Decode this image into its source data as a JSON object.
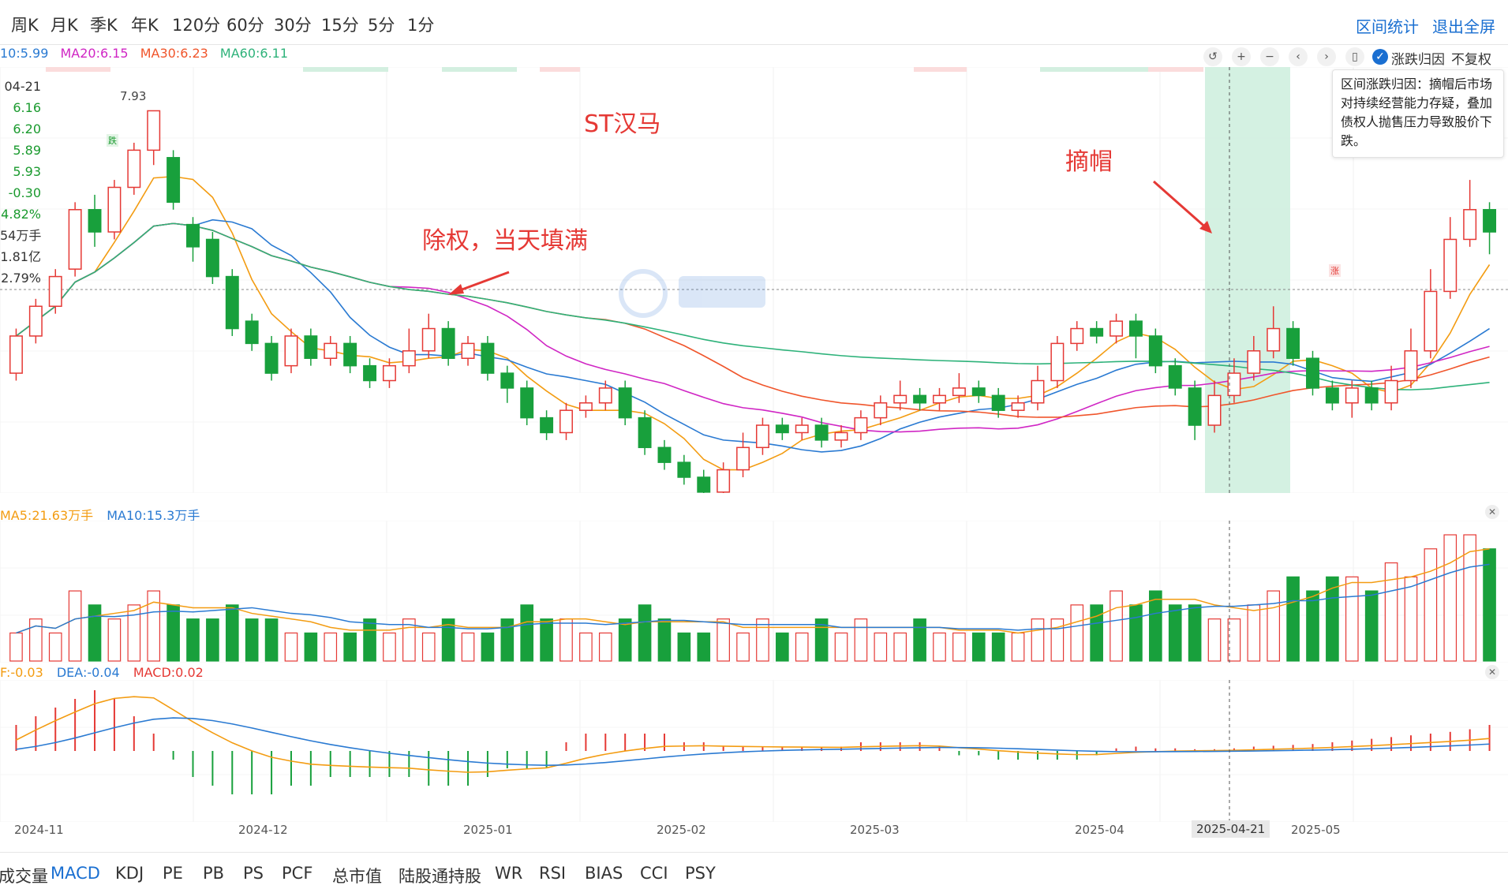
{
  "periods": [
    "周K",
    "月K",
    "季K",
    "年K",
    "120分",
    "60分",
    "30分",
    "15分",
    "5分",
    "1分"
  ],
  "right_links": {
    "range_stats": "区间统计",
    "exit_fullscreen": "退出全屏"
  },
  "ma_legend": [
    {
      "label": "10:5.99",
      "color": "#2a7ad2"
    },
    {
      "label": "MA20:6.15",
      "color": "#d026c4"
    },
    {
      "label": "MA30:6.23",
      "color": "#f0552b"
    },
    {
      "label": "MA60:6.11",
      "color": "#2eb27a"
    }
  ],
  "toolbar": {
    "zhangdie_label": "涨跌归因",
    "fuquan_label": "不复权"
  },
  "info_panel": [
    {
      "text": "04-21",
      "color": "#333333"
    },
    {
      "text": "6.16",
      "color": "#1a9a2e"
    },
    {
      "text": "6.20",
      "color": "#1a9a2e"
    },
    {
      "text": "5.89",
      "color": "#1a9a2e"
    },
    {
      "text": "5.93",
      "color": "#1a9a2e"
    },
    {
      "text": "-0.30",
      "color": "#1a9a2e"
    },
    {
      "text": "4.82%",
      "color": "#1a9a2e"
    },
    {
      "text": "54万手",
      "color": "#333333"
    },
    {
      "text": "1.81亿",
      "color": "#333333"
    },
    {
      "text": "2.79%",
      "color": "#333333"
    }
  ],
  "tooltip": {
    "text": "区间涨跌归因：摘帽后市场对持续经营能力存疑，叠加债权人抛售压力导致股价下跌。"
  },
  "annotations": {
    "title": "ST汉马",
    "exright": "除权，当天填满",
    "remove_st": "摘帽"
  },
  "marks": {
    "max_price": "7.93",
    "down_badge": "跌",
    "up_badge": "涨"
  },
  "volume_legend": [
    {
      "label": "MA5:21.63万手",
      "color": "#f39c12"
    },
    {
      "label": "MA10:15.3万手",
      "color": "#2a7ad2"
    }
  ],
  "macd_legend": [
    {
      "label": "F:-0.03",
      "color": "#f39c12"
    },
    {
      "label": "DEA:-0.04",
      "color": "#2a7ad2"
    },
    {
      "label": "MACD:0.02",
      "color": "#e53935"
    }
  ],
  "x_labels": [
    "2024-11",
    "2024-12",
    "2025-01",
    "2025-02",
    "2025-03",
    "2025-04",
    "2025-04-21",
    "2025-05"
  ],
  "indicator_tabs": [
    "成交量",
    "MACD",
    "KDJ",
    "PE",
    "PB",
    "PS",
    "PCF",
    "总市值",
    "陆股通持股",
    "WR",
    "RSI",
    "BIAS",
    "CCI",
    "PSY"
  ],
  "active_tab": "MACD",
  "colors": {
    "up": "#e53935",
    "down": "#18a03c",
    "ma5": "#f39c12",
    "ma10": "#2a7ad2",
    "ma20": "#d026c4",
    "ma30": "#f0552b",
    "ma60": "#2eb27a",
    "highlight": "#cdeedd"
  },
  "chart_data": {
    "type": "candlestick",
    "title": "ST汉马",
    "x_ticks": [
      "2024-11",
      "2024-12",
      "2025-01",
      "2025-02",
      "2025-03",
      "2025-04",
      "2025-04-21",
      "2025-05"
    ],
    "price_range": [
      3.0,
      8.2
    ],
    "max_marked_price": 7.93,
    "highlight_range": [
      "2025-04-11",
      "2025-05-06"
    ],
    "crosshair_date": "2025-04-21",
    "candles": [
      [
        4.4,
        4.9,
        5.0,
        4.3
      ],
      [
        4.9,
        5.3,
        5.4,
        4.8
      ],
      [
        5.3,
        5.7,
        5.8,
        5.2
      ],
      [
        5.8,
        6.6,
        6.7,
        5.7
      ],
      [
        6.6,
        6.3,
        6.8,
        6.1
      ],
      [
        6.3,
        6.9,
        7.0,
        6.2
      ],
      [
        6.9,
        7.4,
        7.5,
        6.8
      ],
      [
        7.4,
        7.93,
        7.93,
        7.2
      ],
      [
        7.3,
        6.7,
        7.4,
        6.6
      ],
      [
        6.4,
        6.1,
        6.5,
        5.9
      ],
      [
        6.2,
        5.7,
        6.3,
        5.6
      ],
      [
        5.7,
        5.0,
        5.8,
        4.9
      ],
      [
        5.1,
        4.8,
        5.2,
        4.7
      ],
      [
        4.8,
        4.4,
        4.9,
        4.3
      ],
      [
        4.5,
        4.9,
        5.0,
        4.4
      ],
      [
        4.9,
        4.6,
        5.0,
        4.5
      ],
      [
        4.6,
        4.8,
        4.9,
        4.5
      ],
      [
        4.8,
        4.5,
        4.9,
        4.4
      ],
      [
        4.5,
        4.3,
        4.6,
        4.2
      ],
      [
        4.3,
        4.5,
        4.6,
        4.2
      ],
      [
        4.5,
        4.7,
        5.0,
        4.4
      ],
      [
        4.7,
        5.0,
        5.2,
        4.6
      ],
      [
        5.0,
        4.6,
        5.1,
        4.5
      ],
      [
        4.6,
        4.8,
        4.9,
        4.5
      ],
      [
        4.8,
        4.4,
        4.9,
        4.3
      ],
      [
        4.4,
        4.2,
        4.5,
        4.0
      ],
      [
        4.2,
        3.8,
        4.3,
        3.7
      ],
      [
        3.8,
        3.6,
        3.9,
        3.5
      ],
      [
        3.6,
        3.9,
        4.0,
        3.5
      ],
      [
        3.9,
        4.0,
        4.1,
        3.8
      ],
      [
        4.0,
        4.2,
        4.3,
        3.9
      ],
      [
        4.2,
        3.8,
        4.3,
        3.7
      ],
      [
        3.8,
        3.4,
        3.9,
        3.3
      ],
      [
        3.4,
        3.2,
        3.5,
        3.1
      ],
      [
        3.2,
        3.0,
        3.3,
        2.9
      ],
      [
        3.0,
        2.8,
        3.1,
        2.7
      ],
      [
        2.8,
        3.1,
        3.2,
        2.6
      ],
      [
        3.1,
        3.4,
        3.6,
        3.0
      ],
      [
        3.4,
        3.7,
        3.8,
        3.3
      ],
      [
        3.7,
        3.6,
        3.8,
        3.5
      ],
      [
        3.6,
        3.7,
        3.8,
        3.5
      ],
      [
        3.7,
        3.5,
        3.8,
        3.4
      ],
      [
        3.5,
        3.6,
        3.7,
        3.4
      ],
      [
        3.6,
        3.8,
        3.9,
        3.5
      ],
      [
        3.8,
        4.0,
        4.1,
        3.7
      ],
      [
        4.0,
        4.1,
        4.3,
        3.9
      ],
      [
        4.1,
        4.0,
        4.2,
        3.9
      ],
      [
        4.0,
        4.1,
        4.2,
        3.9
      ],
      [
        4.1,
        4.2,
        4.4,
        4.0
      ],
      [
        4.2,
        4.1,
        4.3,
        4.0
      ],
      [
        4.1,
        3.9,
        4.2,
        3.8
      ],
      [
        3.9,
        4.0,
        4.1,
        3.8
      ],
      [
        4.0,
        4.3,
        4.5,
        3.9
      ],
      [
        4.3,
        4.8,
        4.9,
        4.2
      ],
      [
        4.8,
        5.0,
        5.1,
        4.7
      ],
      [
        5.0,
        4.9,
        5.1,
        4.8
      ],
      [
        4.9,
        5.1,
        5.2,
        4.8
      ],
      [
        5.1,
        4.9,
        5.2,
        4.6
      ],
      [
        4.9,
        4.5,
        5.0,
        4.4
      ],
      [
        4.5,
        4.2,
        4.6,
        4.1
      ],
      [
        4.2,
        3.7,
        4.3,
        3.5
      ],
      [
        3.7,
        4.1,
        4.3,
        3.6
      ],
      [
        4.1,
        4.4,
        4.6,
        4.0
      ],
      [
        4.4,
        4.7,
        4.9,
        4.3
      ],
      [
        4.7,
        5.0,
        5.3,
        4.6
      ],
      [
        5.0,
        4.6,
        5.1,
        4.5
      ],
      [
        4.6,
        4.2,
        4.7,
        4.1
      ],
      [
        4.2,
        4.0,
        4.3,
        3.9
      ],
      [
        4.0,
        4.2,
        4.3,
        3.8
      ],
      [
        4.2,
        4.0,
        4.3,
        3.9
      ],
      [
        4.0,
        4.3,
        4.5,
        3.9
      ],
      [
        4.3,
        4.7,
        5.0,
        4.2
      ],
      [
        4.7,
        5.5,
        5.8,
        4.6
      ],
      [
        5.5,
        6.2,
        6.5,
        5.4
      ],
      [
        6.2,
        6.6,
        7.0,
        6.1
      ],
      [
        6.6,
        6.3,
        6.7,
        6.0
      ]
    ],
    "volume": [
      2,
      3,
      2,
      5,
      4,
      3,
      4,
      5,
      4,
      3,
      3,
      4,
      3,
      3,
      2,
      2,
      2,
      2,
      3,
      2,
      3,
      2,
      3,
      2,
      2,
      3,
      4,
      3,
      3,
      2,
      2,
      3,
      4,
      3,
      2,
      2,
      3,
      2,
      3,
      2,
      2,
      3,
      2,
      3,
      2,
      2,
      3,
      2,
      2,
      2,
      2,
      2,
      3,
      3,
      4,
      4,
      5,
      4,
      5,
      4,
      4,
      3,
      3,
      4,
      5,
      6,
      5,
      6,
      6,
      5,
      7,
      6,
      8,
      9,
      9,
      8
    ],
    "macd_hist": [
      0.3,
      0.4,
      0.5,
      0.6,
      0.7,
      0.6,
      0.4,
      0.2,
      -0.1,
      -0.3,
      -0.4,
      -0.5,
      -0.5,
      -0.5,
      -0.4,
      -0.4,
      -0.3,
      -0.3,
      -0.3,
      -0.3,
      -0.3,
      -0.4,
      -0.4,
      -0.4,
      -0.3,
      -0.2,
      -0.2,
      -0.2,
      0.1,
      0.2,
      0.2,
      0.2,
      0.2,
      0.2,
      0.1,
      0.1,
      0.05,
      0.05,
      0.05,
      0.05,
      0.05,
      0.05,
      0.05,
      0.1,
      0.1,
      0.1,
      0.1,
      0.05,
      -0.05,
      -0.05,
      -0.1,
      -0.1,
      -0.1,
      -0.1,
      -0.1,
      -0.05,
      0.03,
      0.05,
      0.03,
      0.03,
      0.02,
      0.02,
      0.03,
      0.05,
      0.06,
      0.07,
      0.08,
      0.1,
      0.12,
      0.14,
      0.16,
      0.18,
      0.2,
      0.22,
      0.25,
      0.3
    ]
  }
}
